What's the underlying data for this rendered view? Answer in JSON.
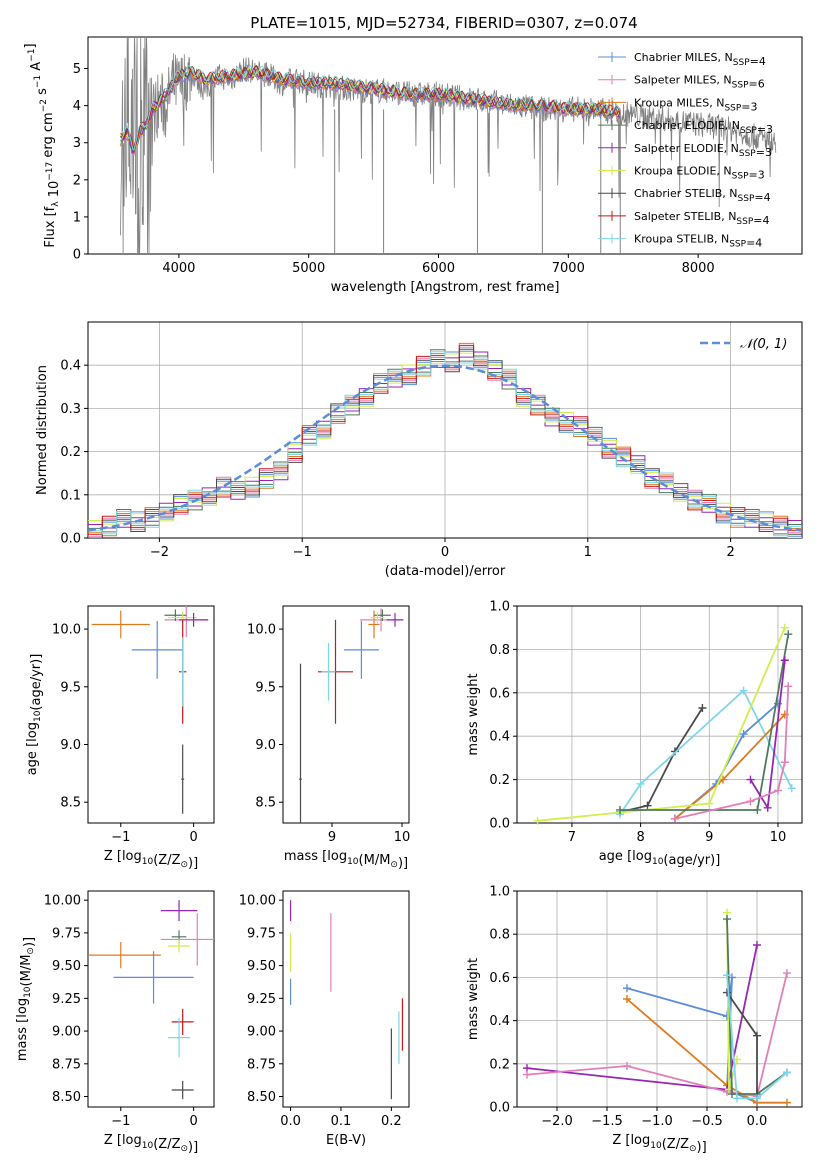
{
  "chart_data": [
    {
      "id": "spectrum",
      "type": "line",
      "title": "PLATE=1015, MJD=52734, FIBERID=0307, z=0.074",
      "xlabel": "wavelength [Angstrom, rest frame]",
      "ylabel": "Flux [f_λ 10^-17 erg cm^-2 s^-1 A^-1]",
      "xlim": [
        3300,
        8800
      ],
      "ylim": [
        0,
        5.85
      ],
      "xticks": [
        4000,
        5000,
        6000,
        7000,
        8000
      ],
      "yticks": [
        0,
        1,
        2,
        3,
        4,
        5
      ],
      "grid": false,
      "legend_position": "upper-right",
      "data_color": "#808080",
      "data_x": [
        3550,
        3600,
        3650,
        3700,
        3750,
        3800,
        3850,
        3900,
        3950,
        4000,
        4100,
        4200,
        4300,
        4400,
        4500,
        4600,
        4700,
        4800,
        4900,
        5000,
        5200,
        5400,
        5600,
        5800,
        6000,
        6200,
        6400,
        6600,
        6800,
        7000,
        7200,
        7400,
        7600,
        7800,
        8000,
        8200,
        8400,
        8600
      ],
      "data_y": [
        3.0,
        3.3,
        2.7,
        3.2,
        3.0,
        3.8,
        4.1,
        3.9,
        4.6,
        4.5,
        4.9,
        4.4,
        4.8,
        4.7,
        5.0,
        4.9,
        4.8,
        4.6,
        4.7,
        4.6,
        4.5,
        4.4,
        4.4,
        4.3,
        4.3,
        4.2,
        4.1,
        4.0,
        3.9,
        3.9,
        3.9,
        3.8,
        3.7,
        3.6,
        3.5,
        3.4,
        3.2,
        3.0
      ],
      "model_x": [
        3550,
        3600,
        3650,
        3700,
        3750,
        3800,
        3900,
        4000,
        4100,
        4200,
        4400,
        4600,
        4800,
        5000,
        5200,
        5400,
        5600,
        5800,
        6000,
        6200,
        6400,
        6600,
        6800,
        7000,
        7200,
        7400
      ],
      "model_y": [
        3.1,
        3.3,
        2.8,
        3.3,
        3.5,
        3.9,
        4.3,
        4.8,
        4.9,
        4.7,
        4.8,
        4.9,
        4.7,
        4.6,
        4.6,
        4.5,
        4.4,
        4.3,
        4.3,
        4.2,
        4.1,
        4.0,
        4.0,
        3.9,
        3.9,
        3.8
      ],
      "series": [
        {
          "name": "Chabrier MILES, N_SSP=4",
          "color": "#5b8dd9"
        },
        {
          "name": "Salpeter MILES, N_SSP=6",
          "color": "#e37fb8"
        },
        {
          "name": "Kroupa MILES, N_SSP=3",
          "color": "#e07a1f"
        },
        {
          "name": "Chabrier ELODIE, N_SSP=3",
          "color": "#4f7a5e"
        },
        {
          "name": "Salpeter ELODIE, N_SSP=3",
          "color": "#9627b3"
        },
        {
          "name": "Kroupa ELODIE, N_SSP=3",
          "color": "#cfee4f"
        },
        {
          "name": "Chabrier STELIB, N_SSP=4",
          "color": "#4a4a4a"
        },
        {
          "name": "Salpeter STELIB, N_SSP=4",
          "color": "#c41a1a"
        },
        {
          "name": "Kroupa STELIB, N_SSP=4",
          "color": "#7fd6e8"
        }
      ]
    },
    {
      "id": "residuals",
      "type": "line",
      "xlabel": "(data-model)/error",
      "ylabel": "Normed distribution",
      "xlim": [
        -2.5,
        2.5
      ],
      "ylim": [
        0,
        0.5
      ],
      "xticks": [
        -2,
        -1,
        0,
        1,
        2
      ],
      "yticks": [
        0.0,
        0.1,
        0.2,
        0.3,
        0.4
      ],
      "grid": true,
      "legend_position": "upper-right",
      "legend": "𝒩(0, 1)",
      "gauss_color": "#5b8dd9",
      "hist_bins": [
        -2.5,
        -2.4,
        -2.3,
        -2.2,
        -2.1,
        -2.0,
        -1.9,
        -1.8,
        -1.7,
        -1.6,
        -1.5,
        -1.4,
        -1.3,
        -1.2,
        -1.1,
        -1.0,
        -0.9,
        -0.8,
        -0.7,
        -0.6,
        -0.5,
        -0.4,
        -0.3,
        -0.2,
        -0.1,
        0.0,
        0.1,
        0.2,
        0.3,
        0.4,
        0.5,
        0.6,
        0.7,
        0.8,
        0.9,
        1.0,
        1.1,
        1.2,
        1.3,
        1.4,
        1.5,
        1.6,
        1.7,
        1.8,
        1.9,
        2.0,
        2.1,
        2.2,
        2.3,
        2.4,
        2.5
      ],
      "hist_values": [
        0.02,
        0.03,
        0.05,
        0.04,
        0.05,
        0.06,
        0.08,
        0.09,
        0.1,
        0.12,
        0.11,
        0.12,
        0.14,
        0.16,
        0.2,
        0.24,
        0.25,
        0.29,
        0.31,
        0.33,
        0.36,
        0.37,
        0.38,
        0.4,
        0.42,
        0.41,
        0.43,
        0.41,
        0.39,
        0.37,
        0.33,
        0.31,
        0.28,
        0.27,
        0.26,
        0.24,
        0.21,
        0.19,
        0.17,
        0.14,
        0.13,
        0.11,
        0.09,
        0.08,
        0.06,
        0.05,
        0.05,
        0.04,
        0.03,
        0.02
      ]
    },
    {
      "id": "z-age",
      "type": "scatter",
      "xlabel": "Z [log10(Z/Z☉)]",
      "ylabel": "age [log10(age/yr)]",
      "xlim": [
        -1.45,
        0.28
      ],
      "ylim": [
        8.32,
        10.2
      ],
      "xticks": [
        -1,
        0
      ],
      "yticks": [
        8.5,
        9.0,
        9.5,
        10.0
      ],
      "points": [
        {
          "series": "Kroupa MILES",
          "x": -1.0,
          "y": 10.04,
          "xerr": 0.4,
          "yerr": 0.12
        },
        {
          "series": "Salpeter MILES",
          "x": -0.1,
          "y": 10.08,
          "xerr": 0.3,
          "yerr": 0.15
        },
        {
          "series": "Chabrier MILES",
          "x": -0.5,
          "y": 9.82,
          "xerr": 0.35,
          "yerr": 0.25
        },
        {
          "series": "Chabrier ELODIE",
          "x": -0.25,
          "y": 10.12,
          "xerr": 0.15,
          "yerr": 0.05
        },
        {
          "series": "Kroupa ELODIE",
          "x": -0.15,
          "y": 10.1,
          "xerr": 0.2,
          "yerr": 0.05
        },
        {
          "series": "Salpeter ELODIE",
          "x": 0.0,
          "y": 10.08,
          "xerr": 0.2,
          "yerr": 0.06
        },
        {
          "series": "Salpeter STELIB",
          "x": -0.15,
          "y": 9.63,
          "xerr": 0.05,
          "yerr": 0.45
        },
        {
          "series": "Kroupa STELIB",
          "x": -0.15,
          "y": 9.63,
          "xerr": 0.02,
          "yerr": 0.3
        },
        {
          "series": "Chabrier STELIB",
          "x": -0.15,
          "y": 8.7,
          "xerr": 0.02,
          "yerr": 0.3
        }
      ]
    },
    {
      "id": "mass-age",
      "type": "scatter",
      "xlabel": "mass [log10(M/M☉)]",
      "ylabel": "",
      "xlim": [
        8.3,
        10.1
      ],
      "ylim": [
        8.32,
        10.2
      ],
      "xticks": [
        9,
        10
      ],
      "yticks": [
        8.5,
        9.0,
        9.5,
        10.0
      ],
      "points": [
        {
          "series": "Chabrier STELIB",
          "x": 8.55,
          "y": 8.7,
          "xerr": 0.02,
          "yerr": 1.0
        },
        {
          "series": "Salpeter STELIB",
          "x": 9.05,
          "y": 9.63,
          "xerr": 0.25,
          "yerr": 0.45
        },
        {
          "series": "Kroupa STELIB",
          "x": 8.95,
          "y": 9.63,
          "xerr": 0.1,
          "yerr": 0.25
        },
        {
          "series": "Chabrier MILES",
          "x": 9.42,
          "y": 9.82,
          "xerr": 0.25,
          "yerr": 0.25
        },
        {
          "series": "Kroupa MILES",
          "x": 9.6,
          "y": 10.04,
          "xerr": 0.08,
          "yerr": 0.12
        },
        {
          "series": "Salpeter MILES",
          "x": 9.7,
          "y": 10.08,
          "xerr": 0.3,
          "yerr": 0.1
        },
        {
          "series": "Chabrier ELODIE",
          "x": 9.72,
          "y": 10.12,
          "xerr": 0.12,
          "yerr": 0.05
        },
        {
          "series": "Kroupa ELODIE",
          "x": 9.65,
          "y": 10.1,
          "xerr": 0.1,
          "yerr": 0.05
        },
        {
          "series": "Salpeter ELODIE",
          "x": 9.9,
          "y": 10.08,
          "xerr": 0.12,
          "yerr": 0.06
        }
      ]
    },
    {
      "id": "age-weight",
      "type": "line",
      "xlabel": "age [log10(age/yr)]",
      "ylabel": "mass weight",
      "xlim": [
        6.2,
        10.35
      ],
      "ylim": [
        0,
        1.0
      ],
      "xticks": [
        7,
        8,
        9,
        10
      ],
      "yticks": [
        0.0,
        0.2,
        0.4,
        0.6,
        0.8,
        1.0
      ],
      "grid": true,
      "lines": [
        {
          "series": "Chabrier STELIB",
          "x": [
            7.7,
            8.1,
            8.5,
            8.9
          ],
          "y": [
            0.05,
            0.08,
            0.33,
            0.53
          ]
        },
        {
          "series": "Kroupa STELIB",
          "x": [
            7.7,
            8.0,
            9.5,
            10.2
          ],
          "y": [
            0.04,
            0.18,
            0.61,
            0.16
          ]
        },
        {
          "series": "Chabrier MILES",
          "x": [
            8.5,
            9.1,
            9.5,
            10.0
          ],
          "y": [
            0.02,
            0.18,
            0.41,
            0.55
          ]
        },
        {
          "series": "Kroupa MILES",
          "x": [
            8.5,
            9.2,
            10.1
          ],
          "y": [
            0.02,
            0.2,
            0.5
          ]
        },
        {
          "series": "Kroupa ELODIE",
          "x": [
            6.5,
            9.0,
            10.1
          ],
          "y": [
            0.01,
            0.09,
            0.9
          ]
        },
        {
          "series": "Chabrier ELODIE",
          "x": [
            7.7,
            9.7,
            10.15
          ],
          "y": [
            0.06,
            0.06,
            0.87
          ]
        },
        {
          "series": "Salpeter ELODIE",
          "x": [
            9.6,
            9.85,
            10.1
          ],
          "y": [
            0.2,
            0.07,
            0.75
          ]
        },
        {
          "series": "Salpeter MILES",
          "x": [
            8.5,
            9.6,
            10.0,
            10.1,
            10.15
          ],
          "y": [
            0.02,
            0.1,
            0.15,
            0.28,
            0.63
          ]
        }
      ]
    },
    {
      "id": "z-mass",
      "type": "scatter",
      "xlabel": "Z [log10(Z/Z☉)]",
      "ylabel": "mass [log10(M/M☉)]",
      "xlim": [
        -1.45,
        0.28
      ],
      "ylim": [
        8.42,
        10.07
      ],
      "xticks": [
        -1,
        0
      ],
      "yticks": [
        8.5,
        8.75,
        9.0,
        9.25,
        9.5,
        9.75,
        10.0
      ],
      "points": [
        {
          "series": "Salpeter ELODIE",
          "x": -0.2,
          "y": 9.92,
          "xerr": 0.25,
          "yerr": 0.08
        },
        {
          "series": "Chabrier ELODIE",
          "x": -0.2,
          "y": 9.72,
          "xerr": 0.1,
          "yerr": 0.05
        },
        {
          "series": "Salpeter MILES",
          "x": 0.05,
          "y": 9.7,
          "xerr": 0.5,
          "yerr": 0.2
        },
        {
          "series": "Kroupa ELODIE",
          "x": -0.2,
          "y": 9.65,
          "xerr": 0.15,
          "yerr": 0.05
        },
        {
          "series": "Kroupa MILES",
          "x": -1.0,
          "y": 9.58,
          "xerr": 0.55,
          "yerr": 0.1
        },
        {
          "series": "Chabrier MILES",
          "x": -0.55,
          "y": 9.41,
          "xerr": 0.55,
          "yerr": 0.2
        },
        {
          "series": "Salpeter STELIB",
          "x": -0.15,
          "y": 9.07,
          "xerr": 0.15,
          "yerr": 0.1
        },
        {
          "series": "Kroupa STELIB",
          "x": -0.2,
          "y": 8.95,
          "xerr": 0.15,
          "yerr": 0.15
        },
        {
          "series": "Chabrier STELIB",
          "x": -0.15,
          "y": 8.55,
          "xerr": 0.15,
          "yerr": 0.07
        }
      ]
    },
    {
      "id": "ebv-mass",
      "type": "scatter",
      "xlabel": "E(B-V)",
      "ylabel": "",
      "xlim": [
        -0.015,
        0.235
      ],
      "ylim": [
        8.42,
        10.07
      ],
      "xticks": [
        0.0,
        0.1,
        0.2
      ],
      "yticks": [
        8.5,
        8.75,
        9.0,
        9.25,
        9.5,
        9.75,
        10.0
      ],
      "points": [
        {
          "series": "Salpeter ELODIE",
          "x": 0.0,
          "y": 9.92,
          "xerr": 0,
          "yerr": 0.08
        },
        {
          "series": "Kroupa ELODIE",
          "x": 0.0,
          "y": 9.6,
          "xerr": 0,
          "yerr": 0.15
        },
        {
          "series": "Chabrier MILES",
          "x": 0.0,
          "y": 9.3,
          "xerr": 0,
          "yerr": 0.1
        },
        {
          "series": "Salpeter MILES",
          "x": 0.08,
          "y": 9.6,
          "xerr": 0,
          "yerr": 0.3
        },
        {
          "series": "Chabrier STELIB",
          "x": 0.2,
          "y": 8.75,
          "xerr": 0,
          "yerr": 0.27
        },
        {
          "series": "Kroupa STELIB",
          "x": 0.215,
          "y": 8.95,
          "xerr": 0,
          "yerr": 0.2
        },
        {
          "series": "Salpeter STELIB",
          "x": 0.222,
          "y": 9.05,
          "xerr": 0,
          "yerr": 0.2
        }
      ]
    },
    {
      "id": "z-weight",
      "type": "line",
      "xlabel": "Z [log10(Z/Z☉)]",
      "ylabel": "mass weight",
      "xlim": [
        -2.4,
        0.45
      ],
      "ylim": [
        0,
        1.0
      ],
      "xticks": [
        -2.0,
        -1.5,
        -1.0,
        -0.5,
        0.0
      ],
      "yticks": [
        0.0,
        0.2,
        0.4,
        0.6,
        0.8,
        1.0
      ],
      "grid": true,
      "lines": [
        {
          "series": "Chabrier MILES",
          "x": [
            -1.3,
            -0.3,
            -0.25,
            -0.3,
            0.0
          ],
          "y": [
            0.55,
            0.42,
            0.6,
            0.08,
            0.02
          ]
        },
        {
          "series": "Kroupa MILES",
          "x": [
            -1.3,
            -0.3,
            0.0,
            0.3
          ],
          "y": [
            0.5,
            0.1,
            0.02,
            0.02
          ]
        },
        {
          "series": "Salpeter ELODIE",
          "x": [
            -2.3,
            -0.3,
            0.0
          ],
          "y": [
            0.18,
            0.08,
            0.75
          ]
        },
        {
          "series": "Salpeter MILES",
          "x": [
            -2.3,
            -1.3,
            -0.3,
            0.0,
            0.3
          ],
          "y": [
            0.15,
            0.19,
            0.07,
            0.05,
            0.62
          ]
        },
        {
          "series": "Kroupa ELODIE",
          "x": [
            -0.3,
            -0.28,
            -0.2
          ],
          "y": [
            0.9,
            0.08,
            0.22
          ]
        },
        {
          "series": "Chabrier ELODIE",
          "x": [
            -0.3,
            -0.25,
            0.0,
            0.3
          ],
          "y": [
            0.87,
            0.06,
            0.06,
            0.16
          ]
        },
        {
          "series": "Chabrier STELIB",
          "x": [
            -0.3,
            0.0,
            0.0
          ],
          "y": [
            0.53,
            0.33,
            0.04
          ]
        },
        {
          "series": "Kroupa STELIB",
          "x": [
            -0.3,
            -0.2,
            0.0,
            0.3
          ],
          "y": [
            0.61,
            0.04,
            0.04,
            0.16
          ]
        }
      ]
    }
  ]
}
